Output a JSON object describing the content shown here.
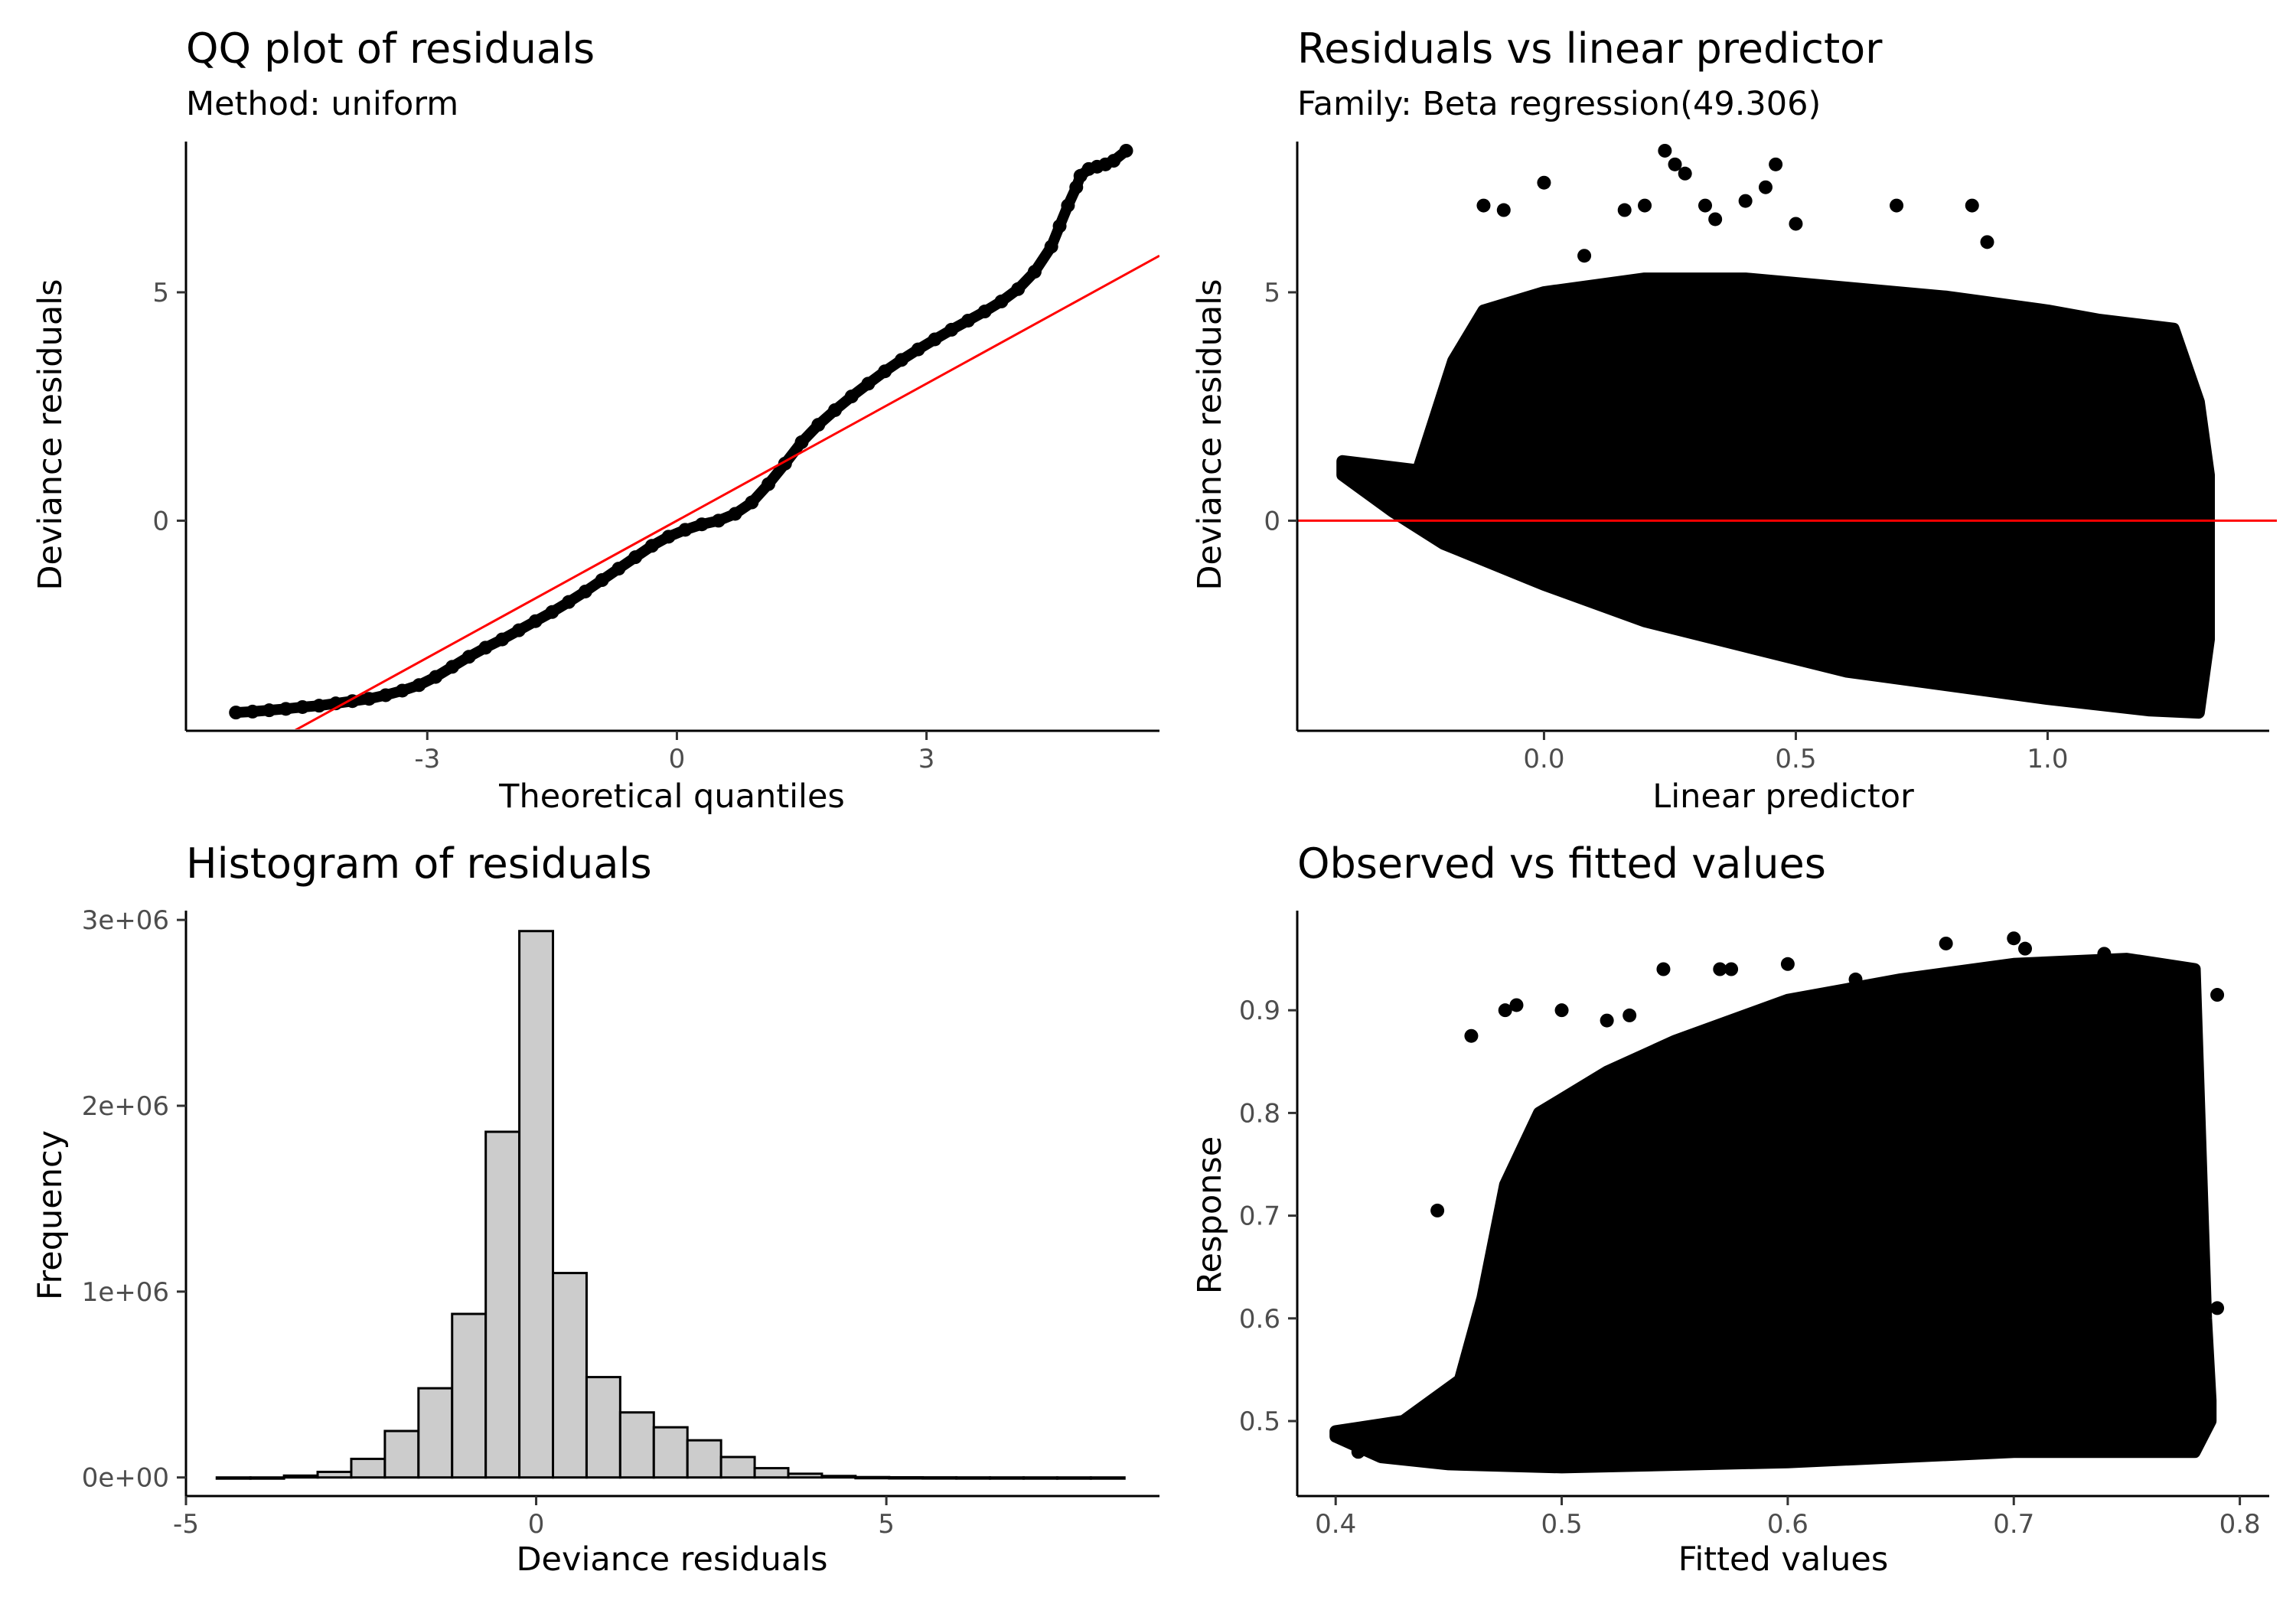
{
  "colors": {
    "points": "#000000",
    "reference_line": "#ff0000",
    "histogram_fill": "#cccccc",
    "histogram_stroke": "#000000",
    "axis": "#000000",
    "tick_text": "#4d4d4d"
  },
  "chart_data": [
    {
      "id": "qq",
      "type": "scatter",
      "title": "QQ plot of residuals",
      "subtitle": "Method: uniform",
      "xlabel": "Theoretical quantiles",
      "ylabel": "Deviance residuals",
      "xlim": [
        -5.9,
        5.8
      ],
      "ylim": [
        -4.6,
        8.3
      ],
      "xticks": [
        {
          "value": -3,
          "label": "-3"
        },
        {
          "value": 0,
          "label": "0"
        },
        {
          "value": 3,
          "label": "3"
        }
      ],
      "yticks": [
        {
          "value": 0,
          "label": "0"
        },
        {
          "value": 5,
          "label": "5"
        }
      ],
      "reference_line": {
        "intercept": 0,
        "slope": 1.0,
        "x_range": [
          -5.9,
          5.8
        ]
      },
      "points": [
        [
          -5.3,
          -4.2
        ],
        [
          -5.1,
          -4.18
        ],
        [
          -4.9,
          -4.15
        ],
        [
          -4.7,
          -4.12
        ],
        [
          -4.5,
          -4.08
        ],
        [
          -4.3,
          -4.05
        ],
        [
          -4.1,
          -4.0
        ],
        [
          -3.9,
          -3.95
        ],
        [
          -3.7,
          -3.9
        ],
        [
          -3.5,
          -3.82
        ],
        [
          -3.3,
          -3.72
        ],
        [
          -3.1,
          -3.6
        ],
        [
          -2.9,
          -3.42
        ],
        [
          -2.7,
          -3.2
        ],
        [
          -2.5,
          -2.98
        ],
        [
          -2.3,
          -2.78
        ],
        [
          -2.1,
          -2.6
        ],
        [
          -1.9,
          -2.4
        ],
        [
          -1.7,
          -2.2
        ],
        [
          -1.5,
          -2.0
        ],
        [
          -1.3,
          -1.78
        ],
        [
          -1.1,
          -1.55
        ],
        [
          -0.9,
          -1.3
        ],
        [
          -0.7,
          -1.05
        ],
        [
          -0.5,
          -0.8
        ],
        [
          -0.3,
          -0.55
        ],
        [
          -0.1,
          -0.35
        ],
        [
          0.1,
          -0.2
        ],
        [
          0.3,
          -0.08
        ],
        [
          0.5,
          0.0
        ],
        [
          0.7,
          0.15
        ],
        [
          0.9,
          0.4
        ],
        [
          1.1,
          0.8
        ],
        [
          1.3,
          1.25
        ],
        [
          1.5,
          1.72
        ],
        [
          1.7,
          2.1
        ],
        [
          1.9,
          2.42
        ],
        [
          2.1,
          2.72
        ],
        [
          2.3,
          3.0
        ],
        [
          2.5,
          3.27
        ],
        [
          2.7,
          3.52
        ],
        [
          2.9,
          3.75
        ],
        [
          3.1,
          3.97
        ],
        [
          3.3,
          4.18
        ],
        [
          3.5,
          4.38
        ],
        [
          3.7,
          4.58
        ],
        [
          3.9,
          4.8
        ],
        [
          4.1,
          5.07
        ],
        [
          4.3,
          5.45
        ],
        [
          4.5,
          6.0
        ],
        [
          4.6,
          6.45
        ],
        [
          4.7,
          6.9
        ],
        [
          4.8,
          7.3
        ],
        [
          4.85,
          7.55
        ],
        [
          4.95,
          7.7
        ],
        [
          5.05,
          7.75
        ],
        [
          5.15,
          7.8
        ],
        [
          5.25,
          7.88
        ],
        [
          5.4,
          8.1
        ]
      ]
    },
    {
      "id": "resid_vs_lp",
      "type": "scatter",
      "title": "Residuals vs linear predictor",
      "subtitle": "Family: Beta regression(49.306)",
      "xlabel": "Linear predictor",
      "ylabel": "Deviance residuals",
      "xlim": [
        -0.49,
        1.44
      ],
      "ylim": [
        -4.6,
        8.3
      ],
      "xticks": [
        {
          "value": 0.0,
          "label": "0.0"
        },
        {
          "value": 0.5,
          "label": "0.5"
        },
        {
          "value": 1.0,
          "label": "1.0"
        }
      ],
      "yticks": [
        {
          "value": 0,
          "label": "0"
        },
        {
          "value": 5,
          "label": "5"
        }
      ],
      "reference_line": {
        "y": 0
      },
      "point_cloud": {
        "upper_boundary": [
          [
            -0.4,
            1.3
          ],
          [
            -0.25,
            1.1
          ],
          [
            -0.18,
            3.5
          ],
          [
            -0.12,
            4.6
          ],
          [
            0.0,
            5.0
          ],
          [
            0.2,
            5.3
          ],
          [
            0.4,
            5.3
          ],
          [
            0.6,
            5.1
          ],
          [
            0.8,
            4.9
          ],
          [
            1.0,
            4.6
          ],
          [
            1.1,
            4.4
          ],
          [
            1.25,
            4.2
          ],
          [
            1.3,
            2.6
          ],
          [
            1.32,
            1.0
          ]
        ],
        "lower_boundary": [
          [
            1.32,
            -2.6
          ],
          [
            1.3,
            -4.2
          ],
          [
            1.2,
            -4.15
          ],
          [
            1.0,
            -3.9
          ],
          [
            0.8,
            -3.6
          ],
          [
            0.6,
            -3.3
          ],
          [
            0.4,
            -2.75
          ],
          [
            0.2,
            -2.2
          ],
          [
            0.0,
            -1.4
          ],
          [
            -0.2,
            -0.5
          ],
          [
            -0.3,
            0.2
          ],
          [
            -0.4,
            1.0
          ]
        ]
      },
      "outliers": [
        [
          -0.12,
          6.9
        ],
        [
          -0.08,
          6.8
        ],
        [
          0.0,
          7.4
        ],
        [
          0.08,
          5.8
        ],
        [
          0.16,
          6.8
        ],
        [
          0.2,
          6.9
        ],
        [
          0.24,
          8.1
        ],
        [
          0.26,
          7.8
        ],
        [
          0.28,
          7.6
        ],
        [
          0.32,
          6.9
        ],
        [
          0.34,
          6.6
        ],
        [
          0.4,
          7.0
        ],
        [
          0.44,
          7.3
        ],
        [
          0.46,
          7.8
        ],
        [
          0.5,
          6.5
        ],
        [
          0.7,
          6.9
        ],
        [
          0.85,
          6.9
        ],
        [
          0.88,
          6.1
        ]
      ]
    },
    {
      "id": "histogram",
      "type": "bar",
      "title": "Histogram of residuals",
      "subtitle": "",
      "xlabel": "Deviance residuals",
      "ylabel": "Frequency",
      "xlim": [
        -5.0,
        8.9
      ],
      "ylim": [
        -100000,
        3050000
      ],
      "xticks": [
        {
          "value": -5,
          "label": "-5"
        },
        {
          "value": 0,
          "label": "0"
        },
        {
          "value": 5,
          "label": "5"
        }
      ],
      "yticks": [
        {
          "value": 0,
          "label": "0e+00"
        },
        {
          "value": 1000000,
          "label": "1e+06"
        },
        {
          "value": 2000000,
          "label": "2e+06"
        },
        {
          "value": 3000000,
          "label": "3e+06"
        }
      ],
      "bin_width": 0.48,
      "bins": [
        {
          "center": -4.32,
          "count": 0
        },
        {
          "center": -3.84,
          "count": 0
        },
        {
          "center": -3.36,
          "count": 10000
        },
        {
          "center": -2.88,
          "count": 30000
        },
        {
          "center": -2.4,
          "count": 100000
        },
        {
          "center": -1.92,
          "count": 250000
        },
        {
          "center": -1.44,
          "count": 480000
        },
        {
          "center": -0.96,
          "count": 880000
        },
        {
          "center": -0.48,
          "count": 1860000
        },
        {
          "center": 0.0,
          "count": 2940000
        },
        {
          "center": 0.48,
          "count": 1100000
        },
        {
          "center": 0.96,
          "count": 540000
        },
        {
          "center": 1.44,
          "count": 350000
        },
        {
          "center": 1.92,
          "count": 270000
        },
        {
          "center": 2.4,
          "count": 200000
        },
        {
          "center": 2.88,
          "count": 110000
        },
        {
          "center": 3.36,
          "count": 50000
        },
        {
          "center": 3.84,
          "count": 20000
        },
        {
          "center": 4.32,
          "count": 8000
        },
        {
          "center": 4.8,
          "count": 2000
        },
        {
          "center": 5.28,
          "count": 1000
        },
        {
          "center": 5.76,
          "count": 500
        },
        {
          "center": 6.24,
          "count": 200
        },
        {
          "center": 6.72,
          "count": 100
        },
        {
          "center": 7.2,
          "count": 50
        },
        {
          "center": 7.68,
          "count": 20
        },
        {
          "center": 8.16,
          "count": 10
        }
      ]
    },
    {
      "id": "obs_vs_fitted",
      "type": "scatter",
      "title": "Observed vs fitted values",
      "subtitle": "",
      "xlabel": "Fitted values",
      "ylabel": "Response",
      "xlim": [
        0.383,
        0.813
      ],
      "ylim": [
        0.427,
        0.997
      ],
      "xticks": [
        {
          "value": 0.4,
          "label": "0.4"
        },
        {
          "value": 0.5,
          "label": "0.5"
        },
        {
          "value": 0.6,
          "label": "0.6"
        },
        {
          "value": 0.7,
          "label": "0.7"
        },
        {
          "value": 0.8,
          "label": "0.8"
        }
      ],
      "yticks": [
        {
          "value": 0.5,
          "label": "0.5"
        },
        {
          "value": 0.6,
          "label": "0.6"
        },
        {
          "value": 0.7,
          "label": "0.7"
        },
        {
          "value": 0.8,
          "label": "0.8"
        },
        {
          "value": 0.9,
          "label": "0.9"
        }
      ],
      "point_cloud": {
        "upper_boundary": [
          [
            0.4,
            0.49
          ],
          [
            0.43,
            0.5
          ],
          [
            0.455,
            0.54
          ],
          [
            0.465,
            0.62
          ],
          [
            0.475,
            0.73
          ],
          [
            0.49,
            0.8
          ],
          [
            0.52,
            0.84
          ],
          [
            0.55,
            0.87
          ],
          [
            0.6,
            0.91
          ],
          [
            0.65,
            0.93
          ],
          [
            0.7,
            0.945
          ],
          [
            0.75,
            0.95
          ],
          [
            0.78,
            0.94
          ],
          [
            0.785,
            0.6
          ],
          [
            0.787,
            0.52
          ]
        ],
        "lower_boundary": [
          [
            0.787,
            0.5
          ],
          [
            0.78,
            0.47
          ],
          [
            0.7,
            0.47
          ],
          [
            0.6,
            0.46
          ],
          [
            0.5,
            0.455
          ],
          [
            0.45,
            0.458
          ],
          [
            0.42,
            0.465
          ],
          [
            0.4,
            0.485
          ]
        ]
      },
      "outliers": [
        [
          0.41,
          0.47
        ],
        [
          0.445,
          0.705
        ],
        [
          0.46,
          0.875
        ],
        [
          0.475,
          0.9
        ],
        [
          0.48,
          0.905
        ],
        [
          0.5,
          0.9
        ],
        [
          0.52,
          0.89
        ],
        [
          0.53,
          0.895
        ],
        [
          0.545,
          0.94
        ],
        [
          0.57,
          0.94
        ],
        [
          0.575,
          0.94
        ],
        [
          0.6,
          0.945
        ],
        [
          0.63,
          0.93
        ],
        [
          0.67,
          0.965
        ],
        [
          0.7,
          0.97
        ],
        [
          0.705,
          0.96
        ],
        [
          0.74,
          0.955
        ],
        [
          0.78,
          0.915
        ],
        [
          0.79,
          0.915
        ],
        [
          0.79,
          0.61
        ]
      ]
    }
  ]
}
